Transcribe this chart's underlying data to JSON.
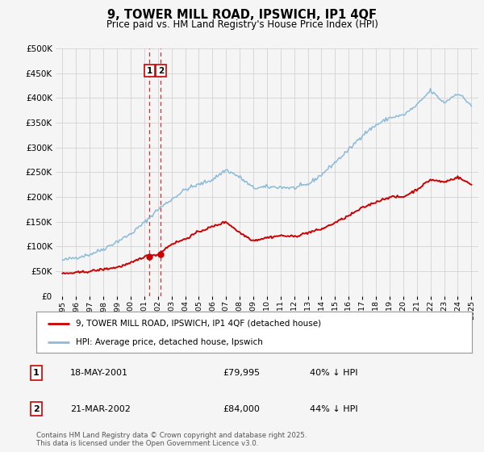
{
  "title": "9, TOWER MILL ROAD, IPSWICH, IP1 4QF",
  "subtitle": "Price paid vs. HM Land Registry's House Price Index (HPI)",
  "legend_line1": "9, TOWER MILL ROAD, IPSWICH, IP1 4QF (detached house)",
  "legend_line2": "HPI: Average price, detached house, Ipswich",
  "annotation1_label": "1",
  "annotation1_date": "18-MAY-2001",
  "annotation1_price": "£79,995",
  "annotation1_hpi": "40% ↓ HPI",
  "annotation2_label": "2",
  "annotation2_date": "21-MAR-2002",
  "annotation2_price": "£84,000",
  "annotation2_hpi": "44% ↓ HPI",
  "footnote": "Contains HM Land Registry data © Crown copyright and database right 2025.\nThis data is licensed under the Open Government Licence v3.0.",
  "vline1_x": 2001.38,
  "vline2_x": 2002.22,
  "sale1_x": 2001.38,
  "sale1_y": 79995,
  "sale2_x": 2002.22,
  "sale2_y": 84000,
  "hpi_color": "#8bbbd8",
  "price_color": "#cc0000",
  "vline_color": "#cc0000",
  "background_color": "#f5f5f5",
  "grid_color": "#cccccc",
  "ylim": [
    0,
    500000
  ],
  "xlim": [
    1994.5,
    2025.5
  ],
  "yticks": [
    0,
    50000,
    100000,
    150000,
    200000,
    250000,
    300000,
    350000,
    400000,
    450000,
    500000
  ],
  "xticks": [
    1995,
    1996,
    1997,
    1998,
    1999,
    2000,
    2001,
    2002,
    2003,
    2004,
    2005,
    2006,
    2007,
    2008,
    2009,
    2010,
    2011,
    2012,
    2013,
    2014,
    2015,
    2016,
    2017,
    2018,
    2019,
    2020,
    2021,
    2022,
    2023,
    2024,
    2025
  ],
  "hpi_anchors_x": [
    1995,
    1996,
    1997,
    1998,
    1999,
    2000,
    2001,
    2002,
    2003,
    2004,
    2005,
    2006,
    2007,
    2008,
    2009,
    2010,
    2011,
    2012,
    2013,
    2014,
    2015,
    2016,
    2017,
    2018,
    2019,
    2020,
    2021,
    2022,
    2023,
    2024,
    2025
  ],
  "hpi_anchors_y": [
    72000,
    78000,
    84000,
    95000,
    110000,
    125000,
    148000,
    175000,
    195000,
    215000,
    225000,
    235000,
    255000,
    240000,
    218000,
    220000,
    220000,
    218000,
    225000,
    245000,
    270000,
    295000,
    325000,
    345000,
    360000,
    365000,
    385000,
    415000,
    390000,
    410000,
    385000
  ],
  "price_anchors_x": [
    1995,
    1996,
    1997,
    1998,
    1999,
    2000,
    2001,
    2002,
    2003,
    2004,
    2005,
    2006,
    2007,
    2008,
    2009,
    2010,
    2011,
    2012,
    2013,
    2014,
    2015,
    2016,
    2017,
    2018,
    2019,
    2020,
    2021,
    2022,
    2023,
    2024,
    2025
  ],
  "price_anchors_y": [
    45000,
    47000,
    50000,
    54000,
    58000,
    66000,
    80000,
    84000,
    105000,
    115000,
    130000,
    140000,
    150000,
    128000,
    112000,
    118000,
    122000,
    120000,
    128000,
    135000,
    148000,
    162000,
    178000,
    190000,
    200000,
    200000,
    215000,
    235000,
    230000,
    240000,
    225000
  ]
}
